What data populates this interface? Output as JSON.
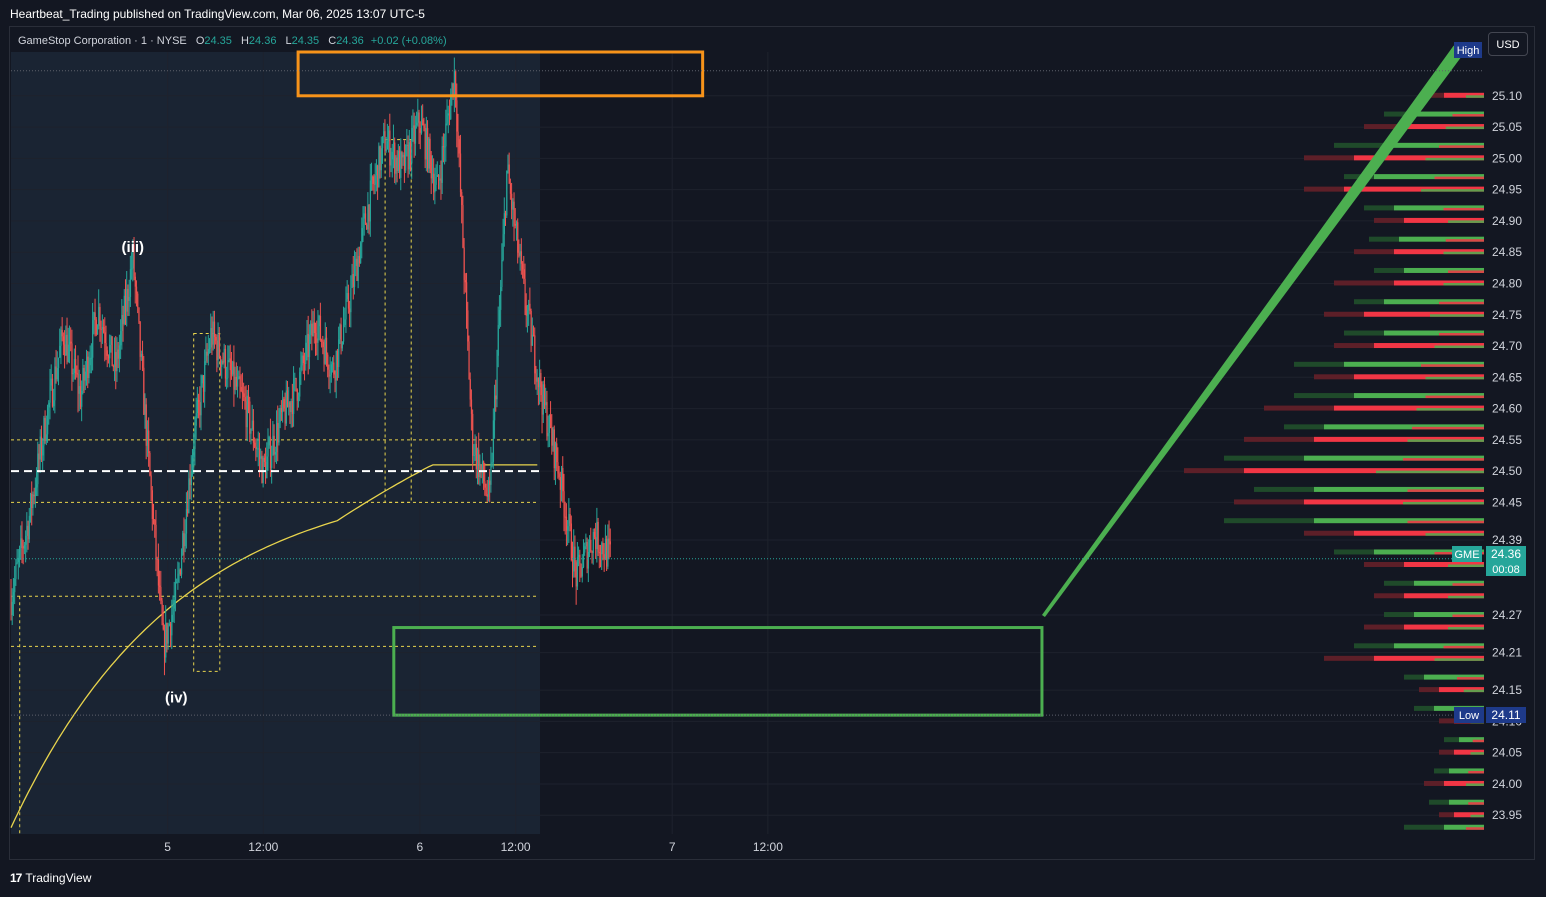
{
  "publisher_line": "Heartbeat_Trading published on TradingView.com, Mar 06, 2025 13:07 UTC-5",
  "footer": {
    "logo_icon": "tradingview-logo-icon",
    "brand": "TradingView"
  },
  "currency_button": "USD",
  "legend": {
    "symbol": "GameStop Corporation · 1 · NYSE",
    "o_label": "O",
    "o_value": "24.35",
    "h_label": "H",
    "h_value": "24.36",
    "l_label": "L",
    "l_value": "24.35",
    "c_label": "C",
    "c_value": "24.36",
    "change": "+0.02 (+0.08%)"
  },
  "colors": {
    "background": "#131722",
    "up": "#26a69a",
    "down": "#ef5350",
    "vwap": "#e8d44d",
    "orange_box": "#f7931a",
    "green_box": "#4caf50",
    "profile_red": "#f23645",
    "profile_green": "#4caf50"
  },
  "chart_data": {
    "type": "candlestick",
    "symbol": "GME",
    "interval": "1",
    "ylim": [
      23.92,
      25.17
    ],
    "x_ticks": [
      "5",
      "12:00",
      "6",
      "12:00",
      "7",
      "12:00"
    ],
    "y_ticks": [
      "25.10",
      "25.05",
      "25.00",
      "24.95",
      "24.90",
      "24.85",
      "24.80",
      "24.75",
      "24.70",
      "24.65",
      "24.60",
      "24.55",
      "24.50",
      "24.45",
      "24.39",
      "24.27",
      "24.21",
      "24.15",
      "24.10",
      "24.05",
      "24.00",
      "23.95"
    ],
    "price_path": [
      [
        0,
        24.3
      ],
      [
        4,
        24.42
      ],
      [
        8,
        24.58
      ],
      [
        12,
        24.72
      ],
      [
        16,
        24.62
      ],
      [
        20,
        24.76
      ],
      [
        24,
        24.66
      ],
      [
        28,
        24.84
      ],
      [
        32,
        24.48
      ],
      [
        35,
        24.22
      ],
      [
        38,
        24.3
      ],
      [
        42,
        24.55
      ],
      [
        46,
        24.72
      ],
      [
        50,
        24.66
      ],
      [
        54,
        24.6
      ],
      [
        58,
        24.5
      ],
      [
        62,
        24.58
      ],
      [
        66,
        24.64
      ],
      [
        70,
        24.74
      ],
      [
        74,
        24.66
      ],
      [
        78,
        24.78
      ],
      [
        82,
        24.92
      ],
      [
        86,
        25.03
      ],
      [
        90,
        24.98
      ],
      [
        94,
        25.06
      ],
      [
        98,
        24.95
      ],
      [
        102,
        25.14
      ],
      [
        106,
        24.55
      ],
      [
        110,
        24.45
      ],
      [
        114,
        24.98
      ],
      [
        118,
        24.78
      ],
      [
        122,
        24.62
      ],
      [
        126,
        24.5
      ],
      [
        130,
        24.33
      ],
      [
        134,
        24.4
      ],
      [
        138,
        24.36
      ]
    ],
    "x_positions": {
      "day5": 36,
      "day5_noon": 58,
      "day6": 94,
      "day6_noon": 116,
      "day7": 152,
      "day7_noon": 174
    },
    "price_label": {
      "ticker": "GME",
      "price": "24.36",
      "countdown": "00:08"
    },
    "high_label": {
      "text": "High",
      "price": "25.14"
    },
    "low_label": {
      "text": "Low",
      "price": "24.11"
    },
    "annotations": [
      {
        "text": "(iii)",
        "x": 28,
        "y": 24.85
      },
      {
        "text": "(iv)",
        "x": 38,
        "y": 24.13
      }
    ],
    "levels": {
      "white_dashed": 24.5
    },
    "zones": [
      {
        "name": "resistance",
        "color": "orange",
        "x": [
          66,
          159
        ],
        "y": [
          25.1,
          25.17
        ]
      },
      {
        "name": "support",
        "color": "green",
        "x": [
          88,
          237
        ],
        "y": [
          24.11,
          24.25
        ]
      }
    ],
    "projection_line": {
      "from": [
        237,
        24.27
      ],
      "to": [
        333,
        25.18
      ]
    },
    "volume_profile": {
      "levels": [
        [
          25.1,
          40,
          55
        ],
        [
          25.07,
          70,
          100
        ],
        [
          25.05,
          85,
          120
        ],
        [
          25.02,
          100,
          150
        ],
        [
          25.0,
          130,
          180
        ],
        [
          24.97,
          110,
          140
        ],
        [
          24.95,
          140,
          180
        ],
        [
          24.92,
          90,
          120
        ],
        [
          24.9,
          80,
          110
        ],
        [
          24.87,
          85,
          115
        ],
        [
          24.85,
          90,
          130
        ],
        [
          24.82,
          80,
          110
        ],
        [
          24.8,
          90,
          150
        ],
        [
          24.77,
          100,
          130
        ],
        [
          24.75,
          120,
          160
        ],
        [
          24.72,
          100,
          140
        ],
        [
          24.7,
          110,
          150
        ],
        [
          24.67,
          140,
          190
        ],
        [
          24.65,
          130,
          170
        ],
        [
          24.62,
          130,
          190
        ],
        [
          24.6,
          150,
          220
        ],
        [
          24.57,
          160,
          200
        ],
        [
          24.55,
          170,
          240
        ],
        [
          24.52,
          180,
          260
        ],
        [
          24.5,
          240,
          300
        ],
        [
          24.47,
          170,
          230
        ],
        [
          24.45,
          180,
          250
        ],
        [
          24.42,
          170,
          260
        ],
        [
          24.4,
          130,
          180
        ],
        [
          24.37,
          110,
          150
        ],
        [
          24.35,
          80,
          120
        ],
        [
          24.32,
          70,
          100
        ],
        [
          24.3,
          80,
          110
        ],
        [
          24.27,
          70,
          100
        ],
        [
          24.25,
          80,
          120
        ],
        [
          24.22,
          90,
          130
        ],
        [
          24.2,
          110,
          160
        ],
        [
          24.17,
          60,
          80
        ],
        [
          24.15,
          45,
          65
        ],
        [
          24.12,
          50,
          70
        ],
        [
          24.1,
          30,
          45
        ],
        [
          24.07,
          25,
          40
        ],
        [
          24.05,
          30,
          45
        ],
        [
          24.02,
          35,
          50
        ],
        [
          24.0,
          40,
          60
        ],
        [
          23.97,
          35,
          55
        ],
        [
          23.95,
          30,
          45
        ],
        [
          23.93,
          40,
          80
        ]
      ]
    }
  }
}
